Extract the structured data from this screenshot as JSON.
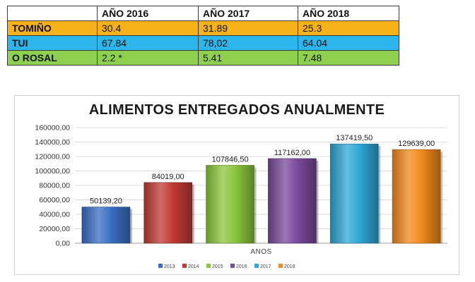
{
  "table": {
    "header": [
      "",
      "AÑO 2016",
      "AÑO 2017",
      "AÑO 2018"
    ],
    "rows": [
      {
        "name": "TOMIÑO",
        "values": [
          "30.4",
          "31.89",
          "25.3"
        ],
        "color": "#f7b21a"
      },
      {
        "name": "TUI",
        "values": [
          "67.84",
          "78,02",
          "64.04"
        ],
        "color": "#2cb6ec"
      },
      {
        "name": "O ROSAL",
        "values": [
          "2.2 *",
          "5.41",
          "7.48"
        ],
        "color": "#8fd14f"
      }
    ]
  },
  "chart_data": {
    "type": "bar",
    "title": "ALIMENTOS ENTREGADOS ANUALMENTE",
    "xlabel": "ANOS",
    "ylabel": "",
    "categories": [
      "2013",
      "2014",
      "2015",
      "2016",
      "2017",
      "2018"
    ],
    "values": [
      50139.2,
      84019.0,
      107846.5,
      117162.0,
      137419.5,
      129639.0
    ],
    "value_labels": [
      "50139,20",
      "84019,00",
      "107846,50",
      "117162,00",
      "137419,50",
      "129639,00"
    ],
    "colors": [
      "#3a6fc4",
      "#c23a35",
      "#8cc63e",
      "#7a4a9e",
      "#2ea8d6",
      "#f28a1c"
    ],
    "ylim": [
      0,
      160000
    ],
    "yticks": [
      0,
      20000,
      40000,
      60000,
      80000,
      100000,
      120000,
      140000,
      160000
    ],
    "ytick_labels": [
      "0,00",
      "20000,00",
      "40000,00",
      "60000,00",
      "80000,00",
      "100000,00",
      "120000,00",
      "140000,00",
      "160000,00"
    ],
    "grid": true,
    "legend": [
      "2013",
      "2014",
      "2015",
      "2016",
      "2017",
      "2018"
    ],
    "legend_position": "bottom"
  }
}
